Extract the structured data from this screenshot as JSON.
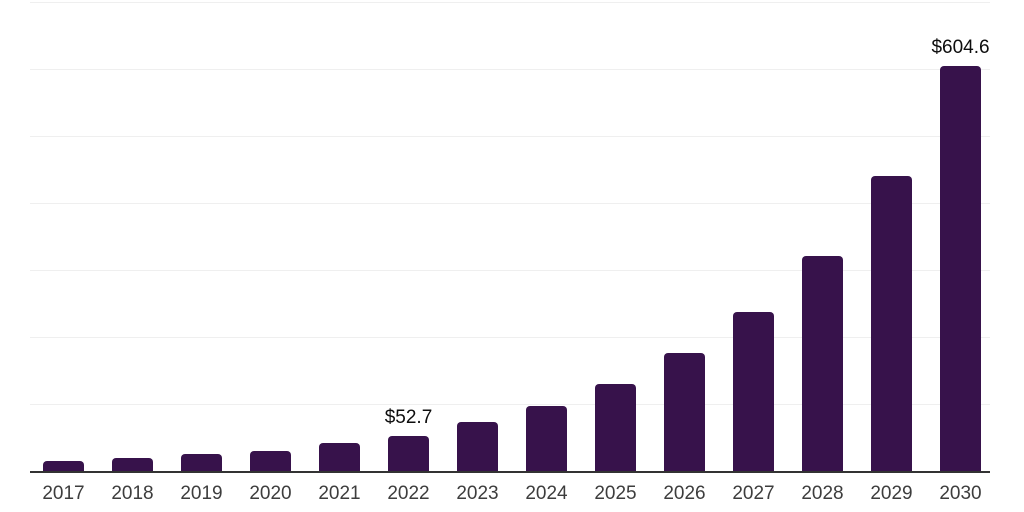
{
  "chart_data": {
    "type": "bar",
    "categories": [
      "2017",
      "2018",
      "2019",
      "2020",
      "2021",
      "2022",
      "2023",
      "2024",
      "2025",
      "2026",
      "2027",
      "2028",
      "2029",
      "2030"
    ],
    "values": [
      14.8,
      18.8,
      24.7,
      30.6,
      41.4,
      52.7,
      72.5,
      97.6,
      130.2,
      176.0,
      236.6,
      321.0,
      440.7,
      604.6
    ],
    "value_labels": [
      {
        "category": "2022",
        "text": "$52.7"
      },
      {
        "category": "2030",
        "text": "$604.6"
      }
    ],
    "ylim": [
      0,
      700
    ],
    "grid_step": 100,
    "grid": true,
    "legend": false,
    "colors": {
      "bar": "#37124B",
      "axis_line": "#333333",
      "gridline": "#efefef",
      "tick_label": "#3d3d3d",
      "value_label": "#0d0d0d",
      "background": "#ffffff"
    }
  }
}
